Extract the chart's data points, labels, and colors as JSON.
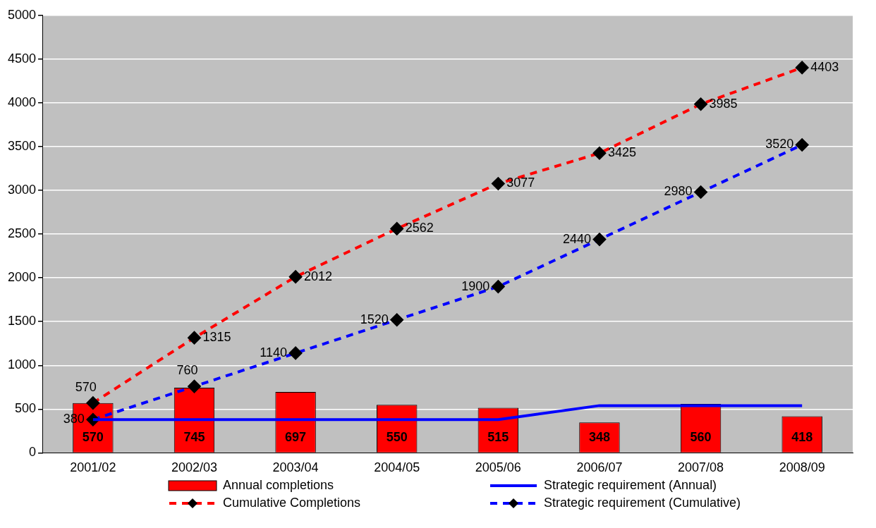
{
  "chart_data": {
    "type": "bar",
    "categories": [
      "2001/02",
      "2002/03",
      "2003/04",
      "2004/05",
      "2005/06",
      "2006/07",
      "2007/08",
      "2008/09"
    ],
    "ylim": [
      0,
      5000
    ],
    "yticks": [
      0,
      500,
      1000,
      1500,
      2000,
      2500,
      3000,
      3500,
      4000,
      4500,
      5000
    ],
    "grid": "y",
    "legend": "bottom",
    "series": [
      {
        "name": "Annual completions",
        "color": "#ff0000",
        "values": [
          570,
          745,
          697,
          550,
          515,
          348,
          560,
          418
        ],
        "value_labels": [
          "570",
          "745",
          "697",
          "550",
          "515",
          "348",
          "560",
          "418"
        ]
      },
      {
        "name": "Strategic requirement (Annual)",
        "type": "line",
        "color": "#0000ff",
        "line_style": "solid",
        "marker": "none",
        "values": [
          380,
          380,
          380,
          380,
          380,
          540,
          540,
          540
        ]
      },
      {
        "name": "Cumulative Completions",
        "type": "line",
        "color": "#ff0000",
        "line_style": "dashed",
        "marker": "diamond",
        "values": [
          570,
          1315,
          2012,
          2562,
          3077,
          3425,
          3985,
          4403
        ],
        "value_labels": [
          "570",
          "1315",
          "2012",
          "2562",
          "3077",
          "3425",
          "3985",
          "4403"
        ]
      },
      {
        "name": "Strategic requirement (Cumulative)",
        "type": "line",
        "color": "#0000ff",
        "line_style": "dashed",
        "marker": "diamond",
        "values": [
          380,
          760,
          1140,
          1520,
          1900,
          2440,
          2980,
          3520
        ],
        "value_labels": [
          "380",
          "760",
          "1140",
          "1520",
          "1900",
          "2440",
          "2980",
          "3520"
        ]
      }
    ]
  }
}
